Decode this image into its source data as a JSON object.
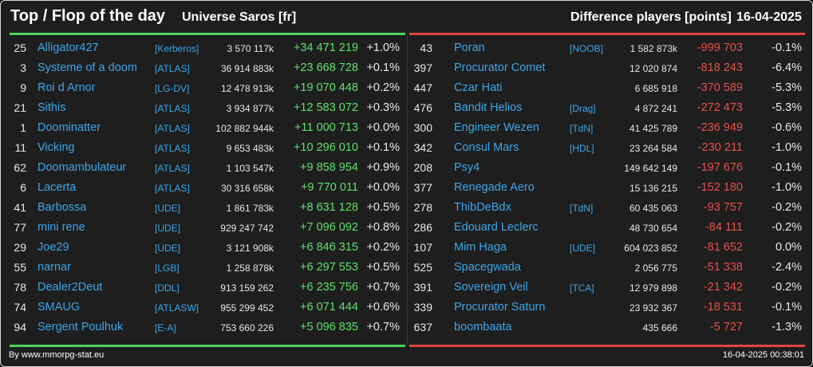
{
  "header": {
    "title": "Top / Flop of the day",
    "universe": "Universe Saros [fr]",
    "metric": "Difference players [points]",
    "date": "16-04-2025"
  },
  "colors": {
    "top": "#5ee06a",
    "flop": "#e8504a",
    "link": "#3da6ea"
  },
  "top": [
    {
      "rank": "25",
      "name": "Alligator427",
      "tag": "[Kerberos]",
      "points": "3 570 117k",
      "diff": "+34 471 219",
      "pct": "+1.0%"
    },
    {
      "rank": "3",
      "name": "Systeme of a doom",
      "tag": "[ATLAS]",
      "points": "36 914 883k",
      "diff": "+23 668 728",
      "pct": "+0.1%"
    },
    {
      "rank": "9",
      "name": "Roi d Arnor",
      "tag": "[LG-DV]",
      "points": "12 478 913k",
      "diff": "+19 070 448",
      "pct": "+0.2%"
    },
    {
      "rank": "21",
      "name": "Sithis",
      "tag": "[ATLAS]",
      "points": "3 934 877k",
      "diff": "+12 583 072",
      "pct": "+0.3%"
    },
    {
      "rank": "1",
      "name": "Doominatter",
      "tag": "[ATLAS]",
      "points": "102 882 944k",
      "diff": "+11 000 713",
      "pct": "+0.0%"
    },
    {
      "rank": "11",
      "name": "Vicking",
      "tag": "[ATLAS]",
      "points": "9 653 483k",
      "diff": "+10 296 010",
      "pct": "+0.1%"
    },
    {
      "rank": "62",
      "name": "Doomambulateur",
      "tag": "[ATLAS]",
      "points": "1 103 547k",
      "diff": "+9 858 954",
      "pct": "+0.9%"
    },
    {
      "rank": "6",
      "name": "Lacerta",
      "tag": "[ATLAS]",
      "points": "30 316 658k",
      "diff": "+9 770 011",
      "pct": "+0.0%"
    },
    {
      "rank": "41",
      "name": "Barbossa",
      "tag": "[UDE]",
      "points": "1 861 783k",
      "diff": "+8 631 128",
      "pct": "+0.5%"
    },
    {
      "rank": "77",
      "name": "mini rene",
      "tag": "[UDE]",
      "points": "929 247 742",
      "diff": "+7 096 092",
      "pct": "+0.8%"
    },
    {
      "rank": "29",
      "name": "Joe29",
      "tag": "[UDE]",
      "points": "3 121 908k",
      "diff": "+6 846 315",
      "pct": "+0.2%"
    },
    {
      "rank": "55",
      "name": "narnar",
      "tag": "[LGB]",
      "points": "1 258 878k",
      "diff": "+6 297 553",
      "pct": "+0.5%"
    },
    {
      "rank": "78",
      "name": "Dealer2Deut",
      "tag": "[DDL]",
      "points": "913 159 262",
      "diff": "+6 235 756",
      "pct": "+0.7%"
    },
    {
      "rank": "74",
      "name": "SMAUG",
      "tag": "[ATLASW]",
      "points": "955 299 452",
      "diff": "+6 071 444",
      "pct": "+0.6%"
    },
    {
      "rank": "94",
      "name": "Sergent Poulhuk",
      "tag": "[E-A]",
      "points": "753 660 226",
      "diff": "+5 096 835",
      "pct": "+0.7%"
    }
  ],
  "flop": [
    {
      "rank": "43",
      "name": "Poran",
      "tag": "[NOOB]",
      "points": "1 582 873k",
      "diff": "-999 703",
      "pct": "-0.1%"
    },
    {
      "rank": "397",
      "name": "Procurator Comet",
      "tag": "",
      "points": "12 020 874",
      "diff": "-818 243",
      "pct": "-6.4%"
    },
    {
      "rank": "447",
      "name": "Czar Hati",
      "tag": "",
      "points": "6 685 918",
      "diff": "-370 589",
      "pct": "-5.3%"
    },
    {
      "rank": "476",
      "name": "Bandit Helios",
      "tag": "[Drag]",
      "points": "4 872 241",
      "diff": "-272 473",
      "pct": "-5.3%"
    },
    {
      "rank": "300",
      "name": "Engineer Wezen",
      "tag": "[TdN]",
      "points": "41 425 789",
      "diff": "-236 949",
      "pct": "-0.6%"
    },
    {
      "rank": "342",
      "name": "Consul Mars",
      "tag": "[HDL]",
      "points": "23 264 584",
      "diff": "-230 211",
      "pct": "-1.0%"
    },
    {
      "rank": "208",
      "name": "Psy4",
      "tag": "",
      "points": "149 642 149",
      "diff": "-197 676",
      "pct": "-0.1%"
    },
    {
      "rank": "377",
      "name": "Renegade Aero",
      "tag": "",
      "points": "15 136 215",
      "diff": "-152 180",
      "pct": "-1.0%"
    },
    {
      "rank": "278",
      "name": "ThibDeBdx",
      "tag": "[TdN]",
      "points": "60 435 063",
      "diff": "-93 757",
      "pct": "-0.2%"
    },
    {
      "rank": "286",
      "name": "Edouard Leclerc",
      "tag": "",
      "points": "48 730 654",
      "diff": "-84 111",
      "pct": "-0.2%"
    },
    {
      "rank": "107",
      "name": "Mim Haga",
      "tag": "[UDE]",
      "points": "604 023 852",
      "diff": "-81 652",
      "pct": "0.0%"
    },
    {
      "rank": "525",
      "name": "Spacegwada",
      "tag": "",
      "points": "2 056 775",
      "diff": "-51 338",
      "pct": "-2.4%"
    },
    {
      "rank": "391",
      "name": "Sovereign Veil",
      "tag": "[TCA]",
      "points": "12 979 898",
      "diff": "-21 342",
      "pct": "-0.2%"
    },
    {
      "rank": "339",
      "name": "Procurator Saturn",
      "tag": "",
      "points": "23 932 367",
      "diff": "-18 531",
      "pct": "-0.1%"
    },
    {
      "rank": "637",
      "name": "boombaata",
      "tag": "",
      "points": "435 666",
      "diff": "-5 727",
      "pct": "-1.3%"
    }
  ],
  "footer": {
    "credit": "By www.mmorpg-stat.eu",
    "timestamp": "16-04-2025 00:38:01"
  }
}
